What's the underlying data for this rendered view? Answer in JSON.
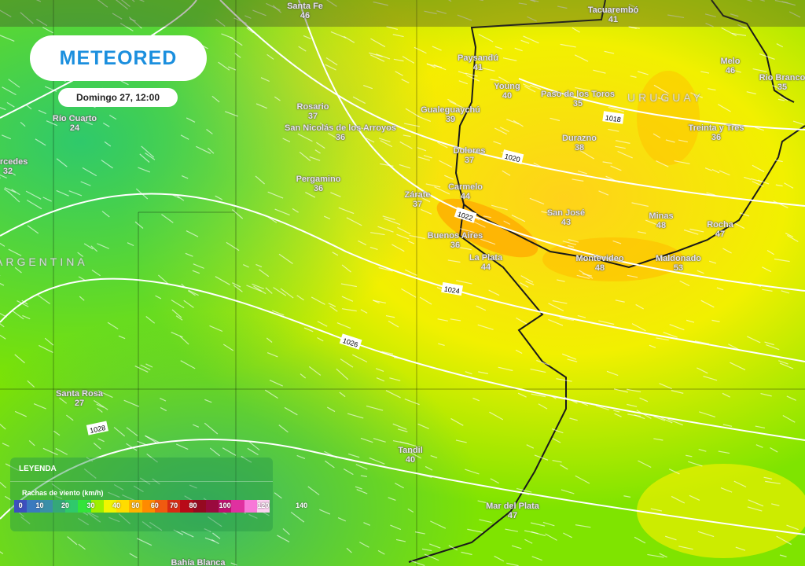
{
  "brand": {
    "logo": "METEORED",
    "date": "Domingo 27, 12:00"
  },
  "legend": {
    "title": "LEYENDA",
    "subtitle": "Rachas de viento (km/h)",
    "ticks": [
      "0",
      "10",
      "20",
      "30",
      "40",
      "50",
      "60",
      "70",
      "80",
      "100",
      "120",
      "140"
    ],
    "colors": [
      "#3c4fbf",
      "#3a7abf",
      "#3a8fa8",
      "#35a878",
      "#2fc96b",
      "#33e43a",
      "#9ef000",
      "#f2f500",
      "#ffdc00",
      "#ffb300",
      "#ff8a00",
      "#f05a10",
      "#d82a12",
      "#b80a18",
      "#950a20",
      "#9a0a3e",
      "#c01070",
      "#e030a0",
      "#f878d8",
      "#fcd0f0"
    ],
    "tick_positions": [
      0,
      1.5,
      3.5,
      5.5,
      7.5,
      9,
      10.5,
      12,
      13.5,
      16,
      19,
      22
    ]
  },
  "countries": [
    "ARGENTINA",
    "URUGUAY"
  ],
  "cities": [
    {
      "name": "Santa Fe",
      "value": "46"
    },
    {
      "name": "Tacuarembó",
      "value": "41"
    },
    {
      "name": "Paysandú",
      "value": "41"
    },
    {
      "name": "Young",
      "value": "40"
    },
    {
      "name": "Paso de los Toros",
      "value": "35"
    },
    {
      "name": "Melo",
      "value": "46"
    },
    {
      "name": "Rio Branco",
      "value": "35"
    },
    {
      "name": "Rosario",
      "value": "37"
    },
    {
      "name": "Gualeguaychú",
      "value": "39"
    },
    {
      "name": "San Nicolás de los Arroyos",
      "value": "36"
    },
    {
      "name": "Río Cuarto",
      "value": "24"
    },
    {
      "name": "Mercedes",
      "value": "32"
    },
    {
      "name": "Treinta y Tres",
      "value": "36"
    },
    {
      "name": "Durazno",
      "value": "38"
    },
    {
      "name": "Dolores",
      "value": "37"
    },
    {
      "name": "Pergamino",
      "value": "36"
    },
    {
      "name": "Zárate",
      "value": "37"
    },
    {
      "name": "Carmelo",
      "value": "44"
    },
    {
      "name": "San José",
      "value": "43"
    },
    {
      "name": "Minas",
      "value": "48"
    },
    {
      "name": "Rocha",
      "value": "47"
    },
    {
      "name": "Buenos Aires",
      "value": "36"
    },
    {
      "name": "La Plata",
      "value": "44"
    },
    {
      "name": "Montevideo",
      "value": "48"
    },
    {
      "name": "Maldonado",
      "value": "53"
    },
    {
      "name": "Santa Rosa",
      "value": "27"
    },
    {
      "name": "Tandil",
      "value": "40"
    },
    {
      "name": "Mar del Plata",
      "value": "47"
    },
    {
      "name": "Bahía Blanca",
      "value": ""
    }
  ],
  "isobars": [
    "1018",
    "1020",
    "1022",
    "1024",
    "1026",
    "1028"
  ]
}
